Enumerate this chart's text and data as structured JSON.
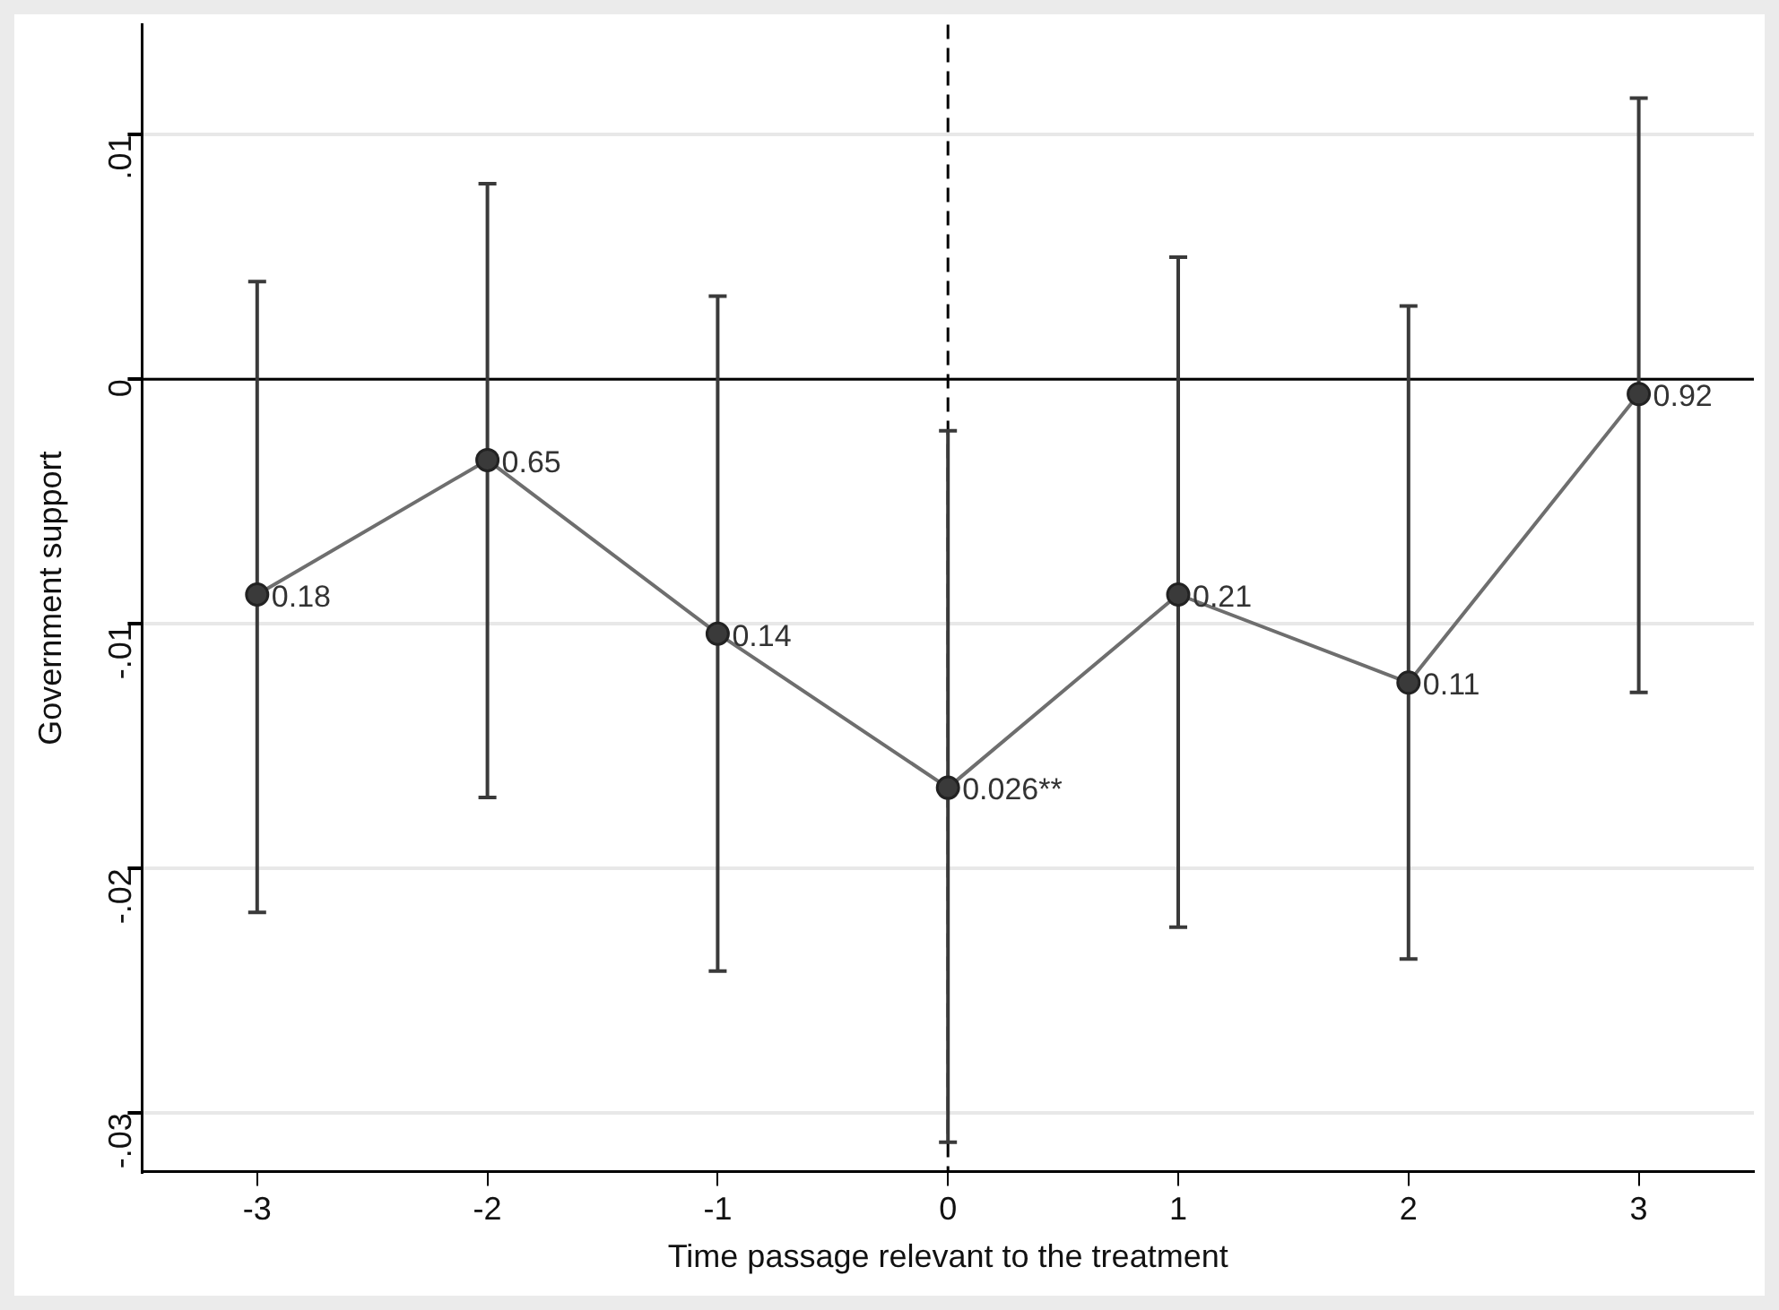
{
  "chart_data": {
    "type": "line",
    "xlabel": "Time passage relevant to the treatment",
    "ylabel": "Government support",
    "x": [
      -3,
      -2,
      -1,
      0,
      1,
      2,
      3
    ],
    "series": [
      {
        "color": "#6e6e6e",
        "values": [
          -0.0088,
          -0.0033,
          -0.0104,
          -0.0167,
          -0.0088,
          -0.0124,
          -0.0006
        ],
        "errors": [
          [
            -0.0218,
            0.004
          ],
          [
            -0.0171,
            0.008
          ],
          [
            -0.0242,
            0.0034
          ],
          [
            -0.0312,
            -0.0021
          ],
          [
            -0.0224,
            0.005
          ],
          [
            -0.0237,
            0.003
          ],
          [
            -0.0128,
            0.0115
          ]
        ]
      }
    ],
    "annotations": [
      {
        "text": "0.18",
        "x": -3,
        "y": -0.0088
      },
      {
        "text": "0.65",
        "x": -2,
        "y": -0.0033
      },
      {
        "text": "0.14",
        "x": -1,
        "y": -0.0104
      },
      {
        "text": "0.026**",
        "x": 0,
        "y": -0.0167
      },
      {
        "text": "0.21",
        "x": 1,
        "y": -0.0088
      },
      {
        "text": "0.11",
        "x": 2,
        "y": -0.0124
      },
      {
        "text": "0.92",
        "x": 3,
        "y": -0.0006
      }
    ],
    "xlim": [
      -3.5,
      3.5
    ],
    "xticks": [
      -3,
      -2,
      -1,
      0,
      1,
      2,
      3
    ],
    "ylim": [
      -0.0324,
      0.0145
    ],
    "yticks": [
      {
        "value": -0.03,
        "label": "-.03"
      },
      {
        "value": -0.02,
        "label": "-.02"
      },
      {
        "value": -0.01,
        "label": "-.01"
      },
      {
        "value": 0,
        "label": "0"
      },
      {
        "value": 0.01,
        "label": ".01"
      }
    ],
    "ref_lines": [
      {
        "axis": "y",
        "value": 0,
        "color": "#000000",
        "line_style": "solid"
      },
      {
        "axis": "x",
        "value": 0,
        "color": "#000000",
        "line_style": "dashed"
      }
    ],
    "grid": "y",
    "marker": "circle",
    "line_style": "solid",
    "legend": false
  }
}
